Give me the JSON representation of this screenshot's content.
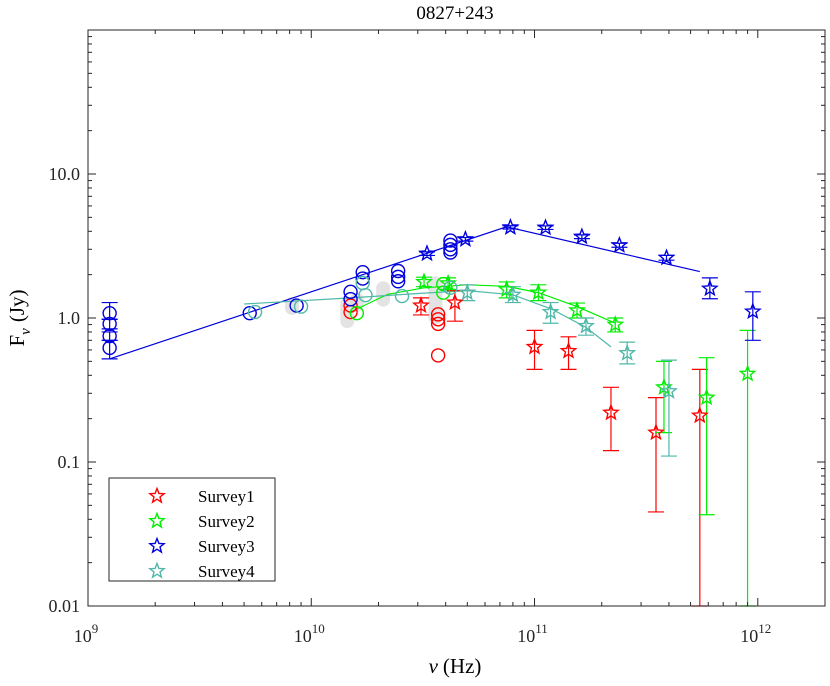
{
  "chart_data": {
    "type": "scatter",
    "title": "0827+243",
    "xlabel_var": "ν",
    "xlabel_unit": "(Hz)",
    "ylabel_base": "F",
    "ylabel_sub": "ν",
    "ylabel_unit": "(Jy)",
    "xscale": "log",
    "yscale": "log",
    "xlim": [
      1000000000.0,
      2000000000000.0
    ],
    "ylim": [
      0.01,
      100
    ],
    "grid": false,
    "legend_position": "bottom-left",
    "x_ticks": [
      {
        "value": 1000000000.0,
        "base": "10",
        "exp": "9"
      },
      {
        "value": 10000000000.0,
        "base": "10",
        "exp": "10"
      },
      {
        "value": 100000000000.0,
        "base": "10",
        "exp": "11"
      },
      {
        "value": 1000000000000.0,
        "base": "10",
        "exp": "12"
      }
    ],
    "y_ticks": [
      {
        "value": 0.01,
        "label": "0.01"
      },
      {
        "value": 0.1,
        "label": "0.1"
      },
      {
        "value": 1,
        "label": "1.0"
      },
      {
        "value": 10,
        "label": "10.0"
      }
    ],
    "series": [
      {
        "name": "Survey1",
        "color": "#ff0000",
        "stars": [
          {
            "x": 31000000000.0,
            "y": 1.22,
            "lo": 1.05,
            "hi": 1.38
          },
          {
            "x": 44000000000.0,
            "y": 1.28,
            "lo": 0.95,
            "hi": 1.55
          },
          {
            "x": 100000000000.0,
            "y": 0.63,
            "lo": 0.44,
            "hi": 0.82
          },
          {
            "x": 142000000000.0,
            "y": 0.59,
            "lo": 0.44,
            "hi": 0.74
          },
          {
            "x": 220000000000.0,
            "y": 0.22,
            "lo": 0.12,
            "hi": 0.33
          },
          {
            "x": 350000000000.0,
            "y": 0.16,
            "lo": 0.045,
            "hi": 0.28
          },
          {
            "x": 550000000000.0,
            "y": 0.21,
            "lo": 0.01,
            "hi": 0.44
          }
        ],
        "circles": [
          {
            "x": 15000000000.0,
            "y": 1.22
          },
          {
            "x": 15000000000.0,
            "y": 1.1
          },
          {
            "x": 37000000000.0,
            "y": 1.06
          },
          {
            "x": 37000000000.0,
            "y": 0.98
          },
          {
            "x": 37000000000.0,
            "y": 0.91
          },
          {
            "x": 37000000000.0,
            "y": 0.55
          }
        ],
        "fit": []
      },
      {
        "name": "Survey2",
        "color": "#00ee00",
        "stars": [
          {
            "x": 32000000000.0,
            "y": 1.78,
            "lo": 1.65,
            "hi": 1.92
          },
          {
            "x": 41000000000.0,
            "y": 1.74,
            "lo": 1.58,
            "hi": 1.9
          },
          {
            "x": 75000000000.0,
            "y": 1.58,
            "lo": 1.38,
            "hi": 1.78
          },
          {
            "x": 104000000000.0,
            "y": 1.5,
            "lo": 1.32,
            "hi": 1.7
          },
          {
            "x": 155000000000.0,
            "y": 1.13,
            "lo": 1.0,
            "hi": 1.27
          },
          {
            "x": 230000000000.0,
            "y": 0.9,
            "lo": 0.8,
            "hi": 1.0
          },
          {
            "x": 380000000000.0,
            "y": 0.33,
            "lo": 0.16,
            "hi": 0.5
          },
          {
            "x": 590000000000.0,
            "y": 0.28,
            "lo": 0.043,
            "hi": 0.53
          },
          {
            "x": 900000000000.0,
            "y": 0.41,
            "lo": 0.01,
            "hi": 0.82
          }
        ],
        "circles": [
          {
            "x": 16000000000.0,
            "y": 1.08
          },
          {
            "x": 39000000000.0,
            "y": 1.72
          },
          {
            "x": 39000000000.0,
            "y": 1.5
          }
        ],
        "fit": [
          [
            15000000000.0,
            1.1
          ],
          [
            22000000000.0,
            1.46
          ],
          [
            32000000000.0,
            1.62
          ],
          [
            50000000000.0,
            1.7
          ],
          [
            75000000000.0,
            1.66
          ],
          [
            104000000000.0,
            1.5
          ],
          [
            155000000000.0,
            1.2
          ],
          [
            230000000000.0,
            0.92
          ]
        ]
      },
      {
        "name": "Survey3",
        "color": "#0000dd",
        "stars": [
          {
            "x": 33000000000.0,
            "y": 2.8,
            "lo": 2.72,
            "hi": 2.88
          },
          {
            "x": 49000000000.0,
            "y": 3.52,
            "lo": 3.42,
            "hi": 3.62
          },
          {
            "x": 78000000000.0,
            "y": 4.26,
            "lo": 4.15,
            "hi": 4.37
          },
          {
            "x": 112000000000.0,
            "y": 4.24,
            "lo": 4.12,
            "hi": 4.36
          },
          {
            "x": 163000000000.0,
            "y": 3.67,
            "lo": 3.56,
            "hi": 3.78
          },
          {
            "x": 240000000000.0,
            "y": 3.2,
            "lo": 3.1,
            "hi": 3.3
          },
          {
            "x": 390000000000.0,
            "y": 2.62,
            "lo": 2.52,
            "hi": 2.72
          },
          {
            "x": 610000000000.0,
            "y": 1.6,
            "lo": 1.36,
            "hi": 1.9
          },
          {
            "x": 950000000000.0,
            "y": 1.11,
            "lo": 0.7,
            "hi": 1.52
          }
        ],
        "circles": [
          {
            "x": 1250000000.0,
            "y": 1.08,
            "lo": 0.98,
            "hi": 1.28
          },
          {
            "x": 1250000000.0,
            "y": 0.91,
            "lo": 0.84,
            "hi": 0.98
          },
          {
            "x": 1250000000.0,
            "y": 0.75,
            "lo": 0.7,
            "hi": 0.8
          },
          {
            "x": 1250000000.0,
            "y": 0.62,
            "lo": 0.52,
            "hi": 0.7
          },
          {
            "x": 5300000000.0,
            "y": 1.08
          },
          {
            "x": 8600000000.0,
            "y": 1.22
          },
          {
            "x": 15000000000.0,
            "y": 1.52
          },
          {
            "x": 15000000000.0,
            "y": 1.35
          },
          {
            "x": 17000000000.0,
            "y": 2.08
          },
          {
            "x": 17000000000.0,
            "y": 1.88
          },
          {
            "x": 24500000000.0,
            "y": 2.12
          },
          {
            "x": 24500000000.0,
            "y": 1.93
          },
          {
            "x": 24500000000.0,
            "y": 1.8
          },
          {
            "x": 42000000000.0,
            "y": 3.45
          },
          {
            "x": 42000000000.0,
            "y": 3.22
          },
          {
            "x": 42000000000.0,
            "y": 3.0
          },
          {
            "x": 42000000000.0,
            "y": 2.85
          }
        ],
        "fit": [
          [
            1250000000.0,
            0.52
          ],
          [
            75000000000.0,
            4.3
          ],
          [
            550000000000.0,
            2.1
          ]
        ]
      },
      {
        "name": "Survey4",
        "color": "#4fb8a8",
        "stars": [
          {
            "x": 50000000000.0,
            "y": 1.5,
            "lo": 1.32,
            "hi": 1.7
          },
          {
            "x": 80000000000.0,
            "y": 1.45,
            "lo": 1.28,
            "hi": 1.65
          },
          {
            "x": 118000000000.0,
            "y": 1.1,
            "lo": 0.92,
            "hi": 1.28
          },
          {
            "x": 170000000000.0,
            "y": 0.88,
            "lo": 0.76,
            "hi": 1.0
          },
          {
            "x": 260000000000.0,
            "y": 0.57,
            "lo": 0.48,
            "hi": 0.68
          },
          {
            "x": 400000000000.0,
            "y": 0.31,
            "lo": 0.11,
            "hi": 0.51
          }
        ],
        "circles": [
          {
            "x": 5600000000.0,
            "y": 1.1
          },
          {
            "x": 9000000000.0,
            "y": 1.2
          },
          {
            "x": 17000000000.0,
            "y": 1.75
          },
          {
            "x": 17500000000.0,
            "y": 1.44
          },
          {
            "x": 25500000000.0,
            "y": 1.42
          },
          {
            "x": 42000000000.0,
            "y": 1.62
          }
        ],
        "fit": [
          [
            5000000000.0,
            1.25
          ],
          [
            15000000000.0,
            1.38
          ],
          [
            30000000000.0,
            1.48
          ],
          [
            50000000000.0,
            1.55
          ],
          [
            80000000000.0,
            1.45
          ],
          [
            120000000000.0,
            1.15
          ],
          [
            170000000000.0,
            0.86
          ],
          [
            220000000000.0,
            0.63
          ]
        ]
      }
    ],
    "shading": [
      {
        "x": 14500000000.0,
        "y_lo": 0.85,
        "y_hi": 1.4
      },
      {
        "x": 36000000000.0,
        "y_lo": 0.9,
        "y_hi": 1.95
      },
      {
        "x": 8200000000.0,
        "y_lo": 1.05,
        "y_hi": 1.4
      },
      {
        "x": 21000000000.0,
        "y_lo": 1.2,
        "y_hi": 1.8
      },
      {
        "x": 16000000000.0,
        "y_lo": 1.1,
        "y_hi": 1.5
      }
    ]
  }
}
